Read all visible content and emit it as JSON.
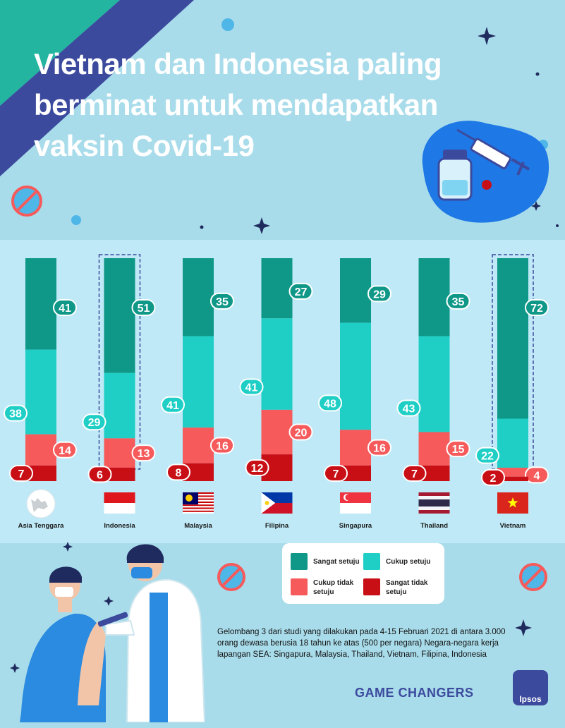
{
  "title": "Vietnam dan Indonesia paling berminat untuk mendapatkan vaksin Covid-19",
  "colors": {
    "sangat_setuju": "#0f9787",
    "cukup_setuju": "#1fcfc6",
    "cukup_tidak_setuju": "#f65a5b",
    "sangat_tidak_setuju": "#c90f16",
    "background_top": "#a9dcea",
    "chart_band": "#bfe9f6",
    "brand": "#3c4a9e"
  },
  "legend": {
    "sangat_setuju": "Sangat setuju",
    "cukup_setuju": "Cukup setuju",
    "cukup_tidak_setuju_1": "Cukup tidak",
    "cukup_tidak_setuju_2": "setuju",
    "sangat_tidak_setuju_1": "Sangat tidak",
    "sangat_tidak_setuju_2": "setuju"
  },
  "note": "Gelombang 3 dari studi yang dilakukan pada 4-15 Februari 2021 di antara 3.000 orang dewasa berusia 18 tahun ke atas (500 per negara) Negara-negara kerja lapangan SEA: Singapura, Malaysia, Thailand, Vietnam, Filipina, Indonesia",
  "brand_text": "GAME CHANGERS",
  "logo_text": "Ipsos",
  "icons": [
    "virus-icon",
    "vaccine-vial-icon",
    "syringe-icon",
    "globe-icon",
    "doctor-illustration",
    "patient-illustration",
    "sparkle-icon"
  ],
  "chart_data": {
    "type": "bar",
    "stacked": true,
    "categories": [
      "Asia Tenggara",
      "Indonesia",
      "Malaysia",
      "Filipina",
      "Singapura",
      "Thailand",
      "Vietnam"
    ],
    "highlighted": [
      "Indonesia",
      "Vietnam"
    ],
    "series": [
      {
        "name": "Sangat setuju",
        "values": [
          41,
          51,
          35,
          27,
          29,
          35,
          72
        ]
      },
      {
        "name": "Cukup setuju",
        "values": [
          38,
          29,
          41,
          41,
          48,
          43,
          22
        ]
      },
      {
        "name": "Cukup tidak setuju",
        "values": [
          14,
          13,
          16,
          20,
          16,
          15,
          4
        ]
      },
      {
        "name": "Sangat tidak setuju",
        "values": [
          7,
          6,
          8,
          12,
          7,
          7,
          2
        ]
      }
    ],
    "ylim": [
      0,
      100
    ],
    "grid": false,
    "legend_position": "bottom-right"
  }
}
